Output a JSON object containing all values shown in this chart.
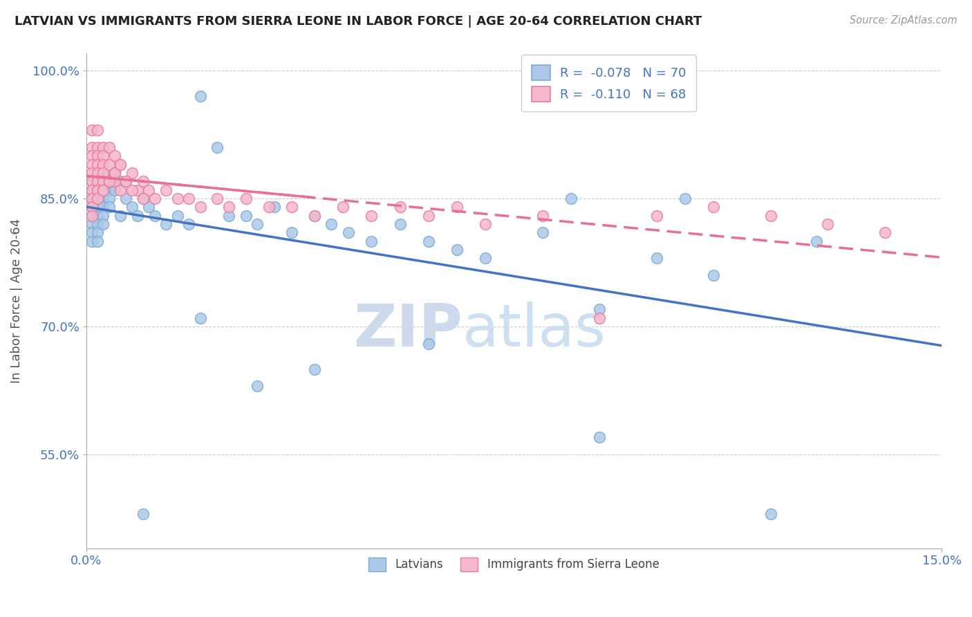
{
  "title": "LATVIAN VS IMMIGRANTS FROM SIERRA LEONE IN LABOR FORCE | AGE 20-64 CORRELATION CHART",
  "source_text": "Source: ZipAtlas.com",
  "ylabel": "In Labor Force | Age 20-64",
  "xlim": [
    0.0,
    0.15
  ],
  "ylim": [
    0.44,
    1.02
  ],
  "yticks": [
    0.55,
    0.7,
    0.85,
    1.0
  ],
  "yticklabels": [
    "55.0%",
    "70.0%",
    "85.0%",
    "100.0%"
  ],
  "latvian_color": "#adc8e8",
  "latvian_edge_color": "#7aaad4",
  "sierra_leone_color": "#f5b8cc",
  "sierra_leone_edge_color": "#e87aa0",
  "latvian_line_color": "#4472c4",
  "sierra_leone_line_color": "#e87090",
  "R_latvian": -0.078,
  "N_latvian": 70,
  "R_sierra": -0.11,
  "N_sierra": 68,
  "watermark_zip": "ZIP",
  "watermark_atlas": "atlas",
  "background_color": "#ffffff",
  "grid_color": "#cccccc",
  "title_color": "#222222",
  "axis_label_color": "#555555",
  "tick_label_color": "#4472c4",
  "lv_x": [
    0.001,
    0.001,
    0.001,
    0.001,
    0.001,
    0.001,
    0.001,
    0.001,
    0.002,
    0.002,
    0.002,
    0.002,
    0.002,
    0.002,
    0.002,
    0.002,
    0.003,
    0.003,
    0.003,
    0.003,
    0.003,
    0.003,
    0.003,
    0.004,
    0.004,
    0.004,
    0.004,
    0.005,
    0.005,
    0.005,
    0.006,
    0.006,
    0.007,
    0.008,
    0.009,
    0.01,
    0.011,
    0.012,
    0.014,
    0.016,
    0.018,
    0.02,
    0.023,
    0.025,
    0.028,
    0.03,
    0.033,
    0.036,
    0.04,
    0.043,
    0.046,
    0.05,
    0.055,
    0.06,
    0.065,
    0.07,
    0.08,
    0.085,
    0.09,
    0.1,
    0.105,
    0.11,
    0.12,
    0.128,
    0.09,
    0.06,
    0.04,
    0.03,
    0.02,
    0.01
  ],
  "lv_y": [
    0.87,
    0.86,
    0.85,
    0.84,
    0.83,
    0.82,
    0.81,
    0.8,
    0.87,
    0.86,
    0.85,
    0.84,
    0.83,
    0.82,
    0.81,
    0.8,
    0.88,
    0.87,
    0.86,
    0.85,
    0.84,
    0.83,
    0.82,
    0.87,
    0.86,
    0.85,
    0.84,
    0.88,
    0.87,
    0.86,
    0.87,
    0.83,
    0.85,
    0.84,
    0.83,
    0.85,
    0.84,
    0.83,
    0.82,
    0.83,
    0.82,
    0.97,
    0.91,
    0.83,
    0.83,
    0.82,
    0.84,
    0.81,
    0.83,
    0.82,
    0.81,
    0.8,
    0.82,
    0.8,
    0.79,
    0.78,
    0.81,
    0.85,
    0.72,
    0.78,
    0.85,
    0.76,
    0.48,
    0.8,
    0.57,
    0.68,
    0.65,
    0.63,
    0.71,
    0.48
  ],
  "sl_x": [
    0.001,
    0.001,
    0.001,
    0.001,
    0.001,
    0.001,
    0.001,
    0.001,
    0.001,
    0.001,
    0.002,
    0.002,
    0.002,
    0.002,
    0.002,
    0.002,
    0.002,
    0.003,
    0.003,
    0.003,
    0.003,
    0.003,
    0.003,
    0.004,
    0.004,
    0.004,
    0.005,
    0.005,
    0.005,
    0.006,
    0.006,
    0.007,
    0.008,
    0.009,
    0.01,
    0.011,
    0.012,
    0.014,
    0.016,
    0.018,
    0.02,
    0.023,
    0.025,
    0.028,
    0.032,
    0.036,
    0.04,
    0.045,
    0.05,
    0.055,
    0.06,
    0.065,
    0.07,
    0.08,
    0.09,
    0.1,
    0.11,
    0.12,
    0.13,
    0.14,
    0.002,
    0.003,
    0.004,
    0.005,
    0.006,
    0.007,
    0.008,
    0.01
  ],
  "sl_y": [
    0.93,
    0.91,
    0.9,
    0.89,
    0.88,
    0.87,
    0.86,
    0.85,
    0.84,
    0.83,
    0.93,
    0.91,
    0.9,
    0.89,
    0.88,
    0.87,
    0.86,
    0.91,
    0.9,
    0.89,
    0.88,
    0.87,
    0.86,
    0.91,
    0.89,
    0.87,
    0.9,
    0.88,
    0.87,
    0.89,
    0.86,
    0.87,
    0.88,
    0.86,
    0.87,
    0.86,
    0.85,
    0.86,
    0.85,
    0.85,
    0.84,
    0.85,
    0.84,
    0.85,
    0.84,
    0.84,
    0.83,
    0.84,
    0.83,
    0.84,
    0.83,
    0.84,
    0.82,
    0.83,
    0.71,
    0.83,
    0.84,
    0.83,
    0.82,
    0.81,
    0.85,
    0.86,
    0.87,
    0.88,
    0.89,
    0.87,
    0.86,
    0.85
  ]
}
